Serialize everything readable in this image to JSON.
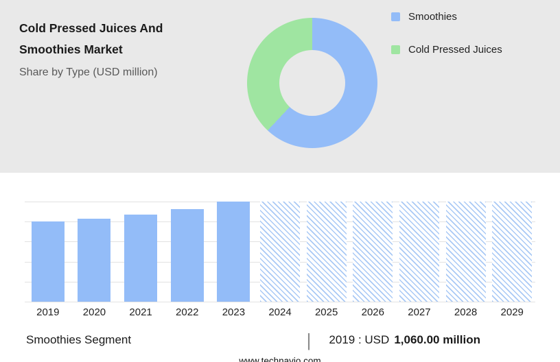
{
  "header": {
    "title": "Cold Pressed Juices And Smoothies Market",
    "subtitle": "Share by Type (USD million)"
  },
  "legend": {
    "items": [
      {
        "label": "Smoothies",
        "color": "#93bcf8"
      },
      {
        "label": "Cold Pressed Juices",
        "color": "#9fe5a1"
      }
    ]
  },
  "chart_data": [
    {
      "type": "pie",
      "donut": true,
      "title": "Share by Type (USD million)",
      "labels": [
        "Smoothies",
        "Cold Pressed Juices"
      ],
      "values_pct": [
        62,
        38
      ],
      "colors": [
        "#93bcf8",
        "#9fe5a1"
      ],
      "legend_position": "right"
    },
    {
      "type": "bar",
      "categories": [
        "2019",
        "2020",
        "2021",
        "2022",
        "2023",
        "2024",
        "2025",
        "2026",
        "2027",
        "2028",
        "2029"
      ],
      "series": [
        {
          "name": "Smoothies Segment",
          "values": [
            1060,
            1090,
            1145,
            1220,
            1320,
            null,
            null,
            null,
            null,
            null,
            null
          ]
        }
      ],
      "note": "2024-2029 are forecast years shown as full-height hatched bars with no labeled values",
      "ylim": [
        0,
        1320
      ],
      "ylabel": "",
      "xlabel": "",
      "gridlines": 6,
      "grid": true,
      "bar_color": "#93bcf8",
      "forecast_hatch_color": "#a9c9f5"
    }
  ],
  "caption": {
    "segment_label": "Smoothies Segment",
    "separator": "|",
    "value_prefix": "2019 : USD",
    "value_bold": "1,060.00 million"
  },
  "footer": {
    "website": "www.technavio.com"
  }
}
